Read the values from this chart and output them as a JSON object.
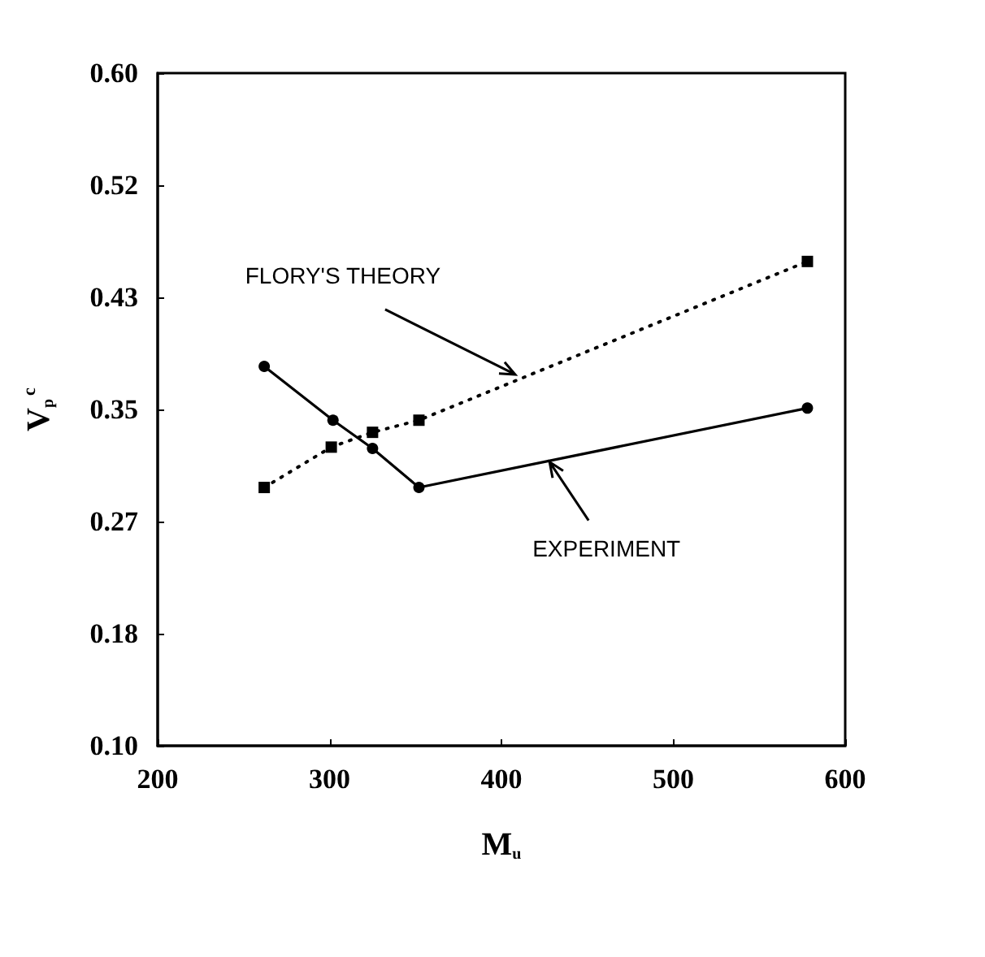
{
  "chart_data": {
    "type": "line",
    "xlabel": "M$_{u}$",
    "ylabel": "V$_{p}$$^{c}$",
    "series": [
      {
        "values": [
          0.382,
          0.342,
          0.321,
          0.292,
          0.351
        ],
        "x": [
          262,
          302,
          325,
          352,
          578
        ],
        "color": "#000000",
        "marker": "circle",
        "line_style": "solid"
      },
      {
        "values": [
          0.292,
          0.322,
          0.333,
          0.342,
          0.46
        ],
        "x": [
          262,
          301,
          325,
          352,
          578
        ],
        "color": "#000000",
        "marker": "square",
        "line_style": "dotted"
      }
    ],
    "annotations": [
      {
        "text": "FLORY'S THEORY",
        "x": 408,
        "y": 0.376
      },
      {
        "text": "EXPERIMENT",
        "x": 428,
        "y": 0.311
      }
    ],
    "xlim": [
      200,
      600
    ],
    "xticks": [
      200,
      300,
      400,
      500,
      600
    ],
    "ylim": [
      0.1,
      0.6
    ],
    "yticks": [
      {
        "value": 0.1,
        "label": "0.10"
      },
      {
        "value": 0.18333,
        "label": "0.18"
      },
      {
        "value": 0.26667,
        "label": "0.27"
      },
      {
        "value": 0.35,
        "label": "0.35"
      },
      {
        "value": 0.43333,
        "label": "0.43"
      },
      {
        "value": 0.51667,
        "label": "0.52"
      },
      {
        "value": 0.6,
        "label": "0.60"
      }
    ],
    "grid": false
  }
}
